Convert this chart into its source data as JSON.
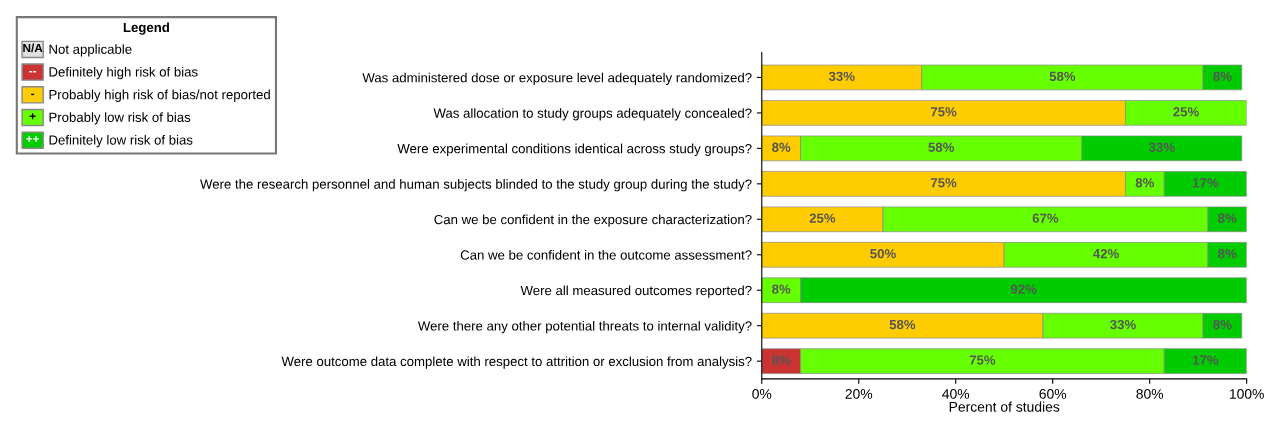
{
  "chart_data": {
    "type": "bar",
    "orientation": "horizontal",
    "stacked": true,
    "categories": [
      "Was administered dose or exposure level adequately randomized?",
      "Was allocation to study groups adequately concealed?",
      "Were experimental conditions identical across study groups?",
      "Were the research personnel and human subjects blinded to the study group during the study?",
      "Can we be confident in the exposure characterization?",
      "Can we be confident in the outcome assessment?",
      "Were all measured outcomes reported?",
      "Were there any other potential threats to internal validity?",
      "Were outcome data complete with respect to attrition or exclusion from analysis?"
    ],
    "series": [
      {
        "name": "Not applicable",
        "color": "#e0e0e0",
        "values": [
          0,
          0,
          0,
          0,
          0,
          0,
          0,
          0,
          0
        ],
        "value_labels": [
          null,
          null,
          null,
          null,
          null,
          null,
          null,
          null,
          null
        ]
      },
      {
        "name": "Definitely high risk of bias",
        "color": "#cc3333",
        "values": [
          0,
          0,
          0,
          0,
          0,
          0,
          0,
          0,
          8
        ],
        "value_labels": [
          null,
          null,
          null,
          null,
          null,
          null,
          null,
          null,
          "8%"
        ]
      },
      {
        "name": "Probably high risk of bias/not reported",
        "color": "#ffcc00",
        "values": [
          33,
          75,
          8,
          75,
          25,
          50,
          0,
          58,
          0
        ],
        "value_labels": [
          "33%",
          "75%",
          "8%",
          "75%",
          "25%",
          "50%",
          null,
          "58%",
          null
        ]
      },
      {
        "name": "Probably low risk of bias",
        "color": "#66ff00",
        "values": [
          58,
          25,
          58,
          8,
          67,
          42,
          8,
          33,
          75
        ],
        "value_labels": [
          "58%",
          "25%",
          "58%",
          "8%",
          "67%",
          "42%",
          "8%",
          "33%",
          "75%"
        ]
      },
      {
        "name": "Definitely low risk of bias",
        "color": "#00cc00",
        "values": [
          8,
          0,
          33,
          17,
          8,
          8,
          92,
          8,
          17
        ],
        "value_labels": [
          "8%",
          null,
          "33%",
          "17%",
          "8%",
          "8%",
          "92%",
          "8%",
          "17%"
        ]
      }
    ],
    "xlabel": "Percent of studies",
    "xlim": [
      0,
      100
    ],
    "xticks": [
      {
        "value": 0,
        "label": "0%"
      },
      {
        "value": 20,
        "label": "20%"
      },
      {
        "value": 40,
        "label": "40%"
      },
      {
        "value": 60,
        "label": "60%"
      },
      {
        "value": 80,
        "label": "80%"
      },
      {
        "value": 100,
        "label": "100%"
      }
    ],
    "legend": "top left",
    "legend_title": "Legend",
    "annotations": [
      "N/A",
      "--",
      "-",
      "+",
      "++"
    ],
    "grid": false
  }
}
